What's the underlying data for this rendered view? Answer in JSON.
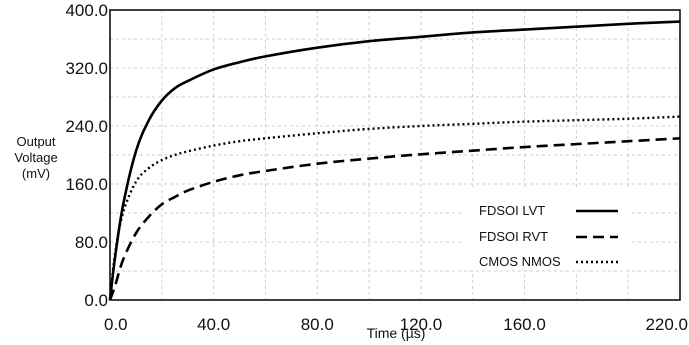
{
  "chart_data": {
    "type": "line",
    "title": "",
    "xlabel": "Time (µs)",
    "ylabel": [
      "Output",
      "Voltage",
      "(mV)"
    ],
    "xlim": [
      0,
      220
    ],
    "ylim": [
      0,
      400
    ],
    "x_ticks": [
      "0.0",
      "40.0",
      "80.0",
      "120.0",
      "160.0",
      "220.0"
    ],
    "x_tick_values": [
      0,
      40,
      80,
      120,
      160,
      220
    ],
    "y_ticks": [
      "0.0",
      "80.0",
      "160.0",
      "240.0",
      "320.0",
      "400.0"
    ],
    "y_tick_values": [
      0,
      80,
      160,
      240,
      320,
      400
    ],
    "grid": true,
    "legend_position": "right",
    "x": [
      0,
      2,
      5,
      10,
      15,
      20,
      25,
      30,
      40,
      50,
      60,
      80,
      100,
      120,
      140,
      160,
      180,
      200,
      220
    ],
    "series": [
      {
        "name": "FDSOI LVT",
        "style": "solid",
        "color": "#000000",
        "values": [
          0,
          60,
          130,
          205,
          248,
          275,
          292,
          302,
          318,
          328,
          336,
          348,
          357,
          363,
          369,
          373,
          377,
          381,
          384
        ]
      },
      {
        "name": "FDSOI RVT",
        "style": "dashed",
        "color": "#000000",
        "values": [
          0,
          20,
          55,
          92,
          115,
          132,
          142,
          151,
          163,
          172,
          178,
          188,
          195,
          201,
          206,
          211,
          215,
          219,
          223
        ]
      },
      {
        "name": "CMOS NMOS",
        "style": "dotted",
        "color": "#000000",
        "values": [
          0,
          65,
          120,
          163,
          182,
          193,
          200,
          205,
          213,
          219,
          223,
          230,
          236,
          240,
          243,
          246,
          248,
          250,
          253
        ]
      }
    ]
  }
}
